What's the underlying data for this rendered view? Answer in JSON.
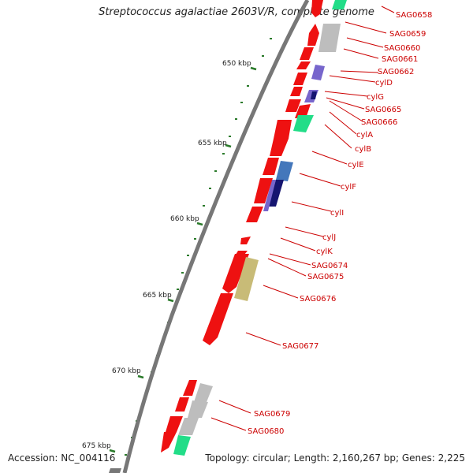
{
  "header": {
    "title": "Streptococcus agalactiae 2603V/R, complete genome"
  },
  "footer": {
    "accession": "Accession: NC_004116",
    "summary": "Topology: circular; Length: 2,160,267 bp; Genes: 2,225"
  },
  "colors": {
    "forward_gene": "#ee1111",
    "gene_label": "#cc0000",
    "backbone": "#777777",
    "tick": "#2a7a2a",
    "feature_gray": "#bdbdbd",
    "feature_purple": "#7766cc",
    "feature_navy": "#151570",
    "feature_green": "#22dd88",
    "feature_blue": "#4477bb",
    "feature_khaki": "#c8bb77"
  },
  "scale": {
    "unit": "kbp",
    "ticks": [
      {
        "label": "650 kbp"
      },
      {
        "label": "655 kbp"
      },
      {
        "label": "660 kbp"
      },
      {
        "label": "665 kbp"
      },
      {
        "label": "670 kbp"
      },
      {
        "label": "675 kbp"
      }
    ]
  },
  "genes": [
    {
      "label": "SAG0658"
    },
    {
      "label": "SAG0659"
    },
    {
      "label": "SAG0660"
    },
    {
      "label": "SAG0661"
    },
    {
      "label": "SAG0662"
    },
    {
      "label": "cylD"
    },
    {
      "label": "cylG"
    },
    {
      "label": "SAG0665"
    },
    {
      "label": "SAG0666"
    },
    {
      "label": "cylA"
    },
    {
      "label": "cylB"
    },
    {
      "label": "cylE"
    },
    {
      "label": "cylF"
    },
    {
      "label": "cylI"
    },
    {
      "label": "cylJ"
    },
    {
      "label": "cylK"
    },
    {
      "label": "SAG0674"
    },
    {
      "label": "SAG0675"
    },
    {
      "label": "SAG0676"
    },
    {
      "label": "SAG0677"
    },
    {
      "label": "SAG0679"
    },
    {
      "label": "SAG0680"
    }
  ]
}
